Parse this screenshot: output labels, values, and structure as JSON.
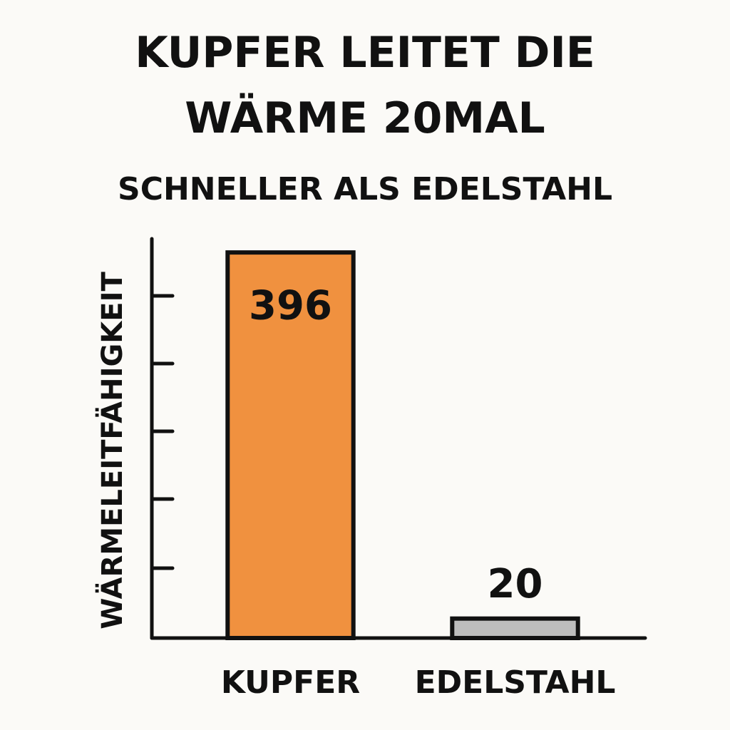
{
  "chart_data": {
    "type": "bar",
    "title": "KUPFER LEITET DIE WÄRME 20MAL",
    "subtitle": "SCHNELLER ALS EDELSTAHL",
    "y_label": "WÄRMELEITFÄHIGKEIT",
    "categories": [
      "KUPFER",
      "EDELSTAHL"
    ],
    "values": [
      396,
      20
    ],
    "colors": [
      "#f0913f",
      "#bdbdbd"
    ],
    "ylim": [
      0,
      410
    ]
  }
}
